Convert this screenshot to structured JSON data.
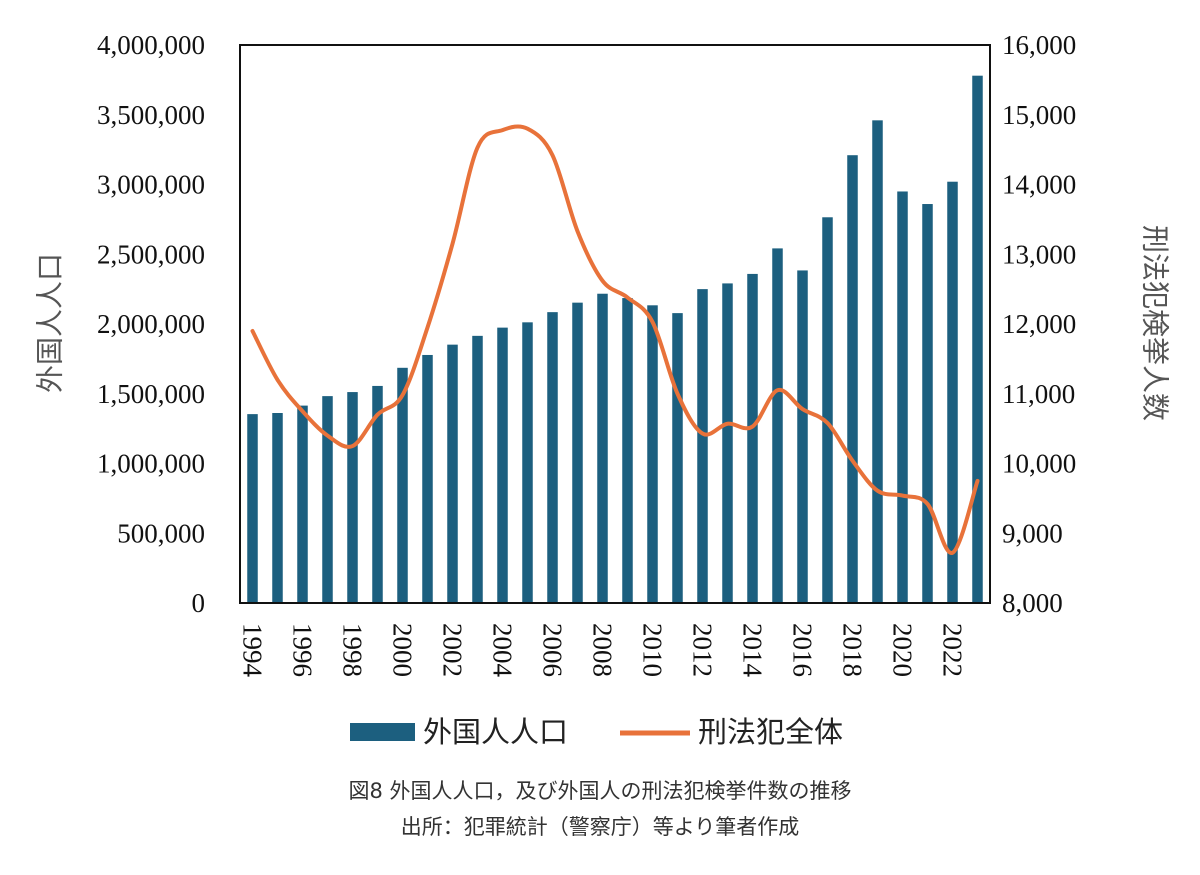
{
  "chart_data": {
    "type": "bar",
    "categories": [
      1994,
      1995,
      1996,
      1997,
      1998,
      1999,
      2000,
      2001,
      2002,
      2003,
      2004,
      2005,
      2006,
      2007,
      2008,
      2009,
      2010,
      2011,
      2012,
      2013,
      2014,
      2015,
      2016,
      2017,
      2018,
      2019,
      2020,
      2021,
      2022,
      2023
    ],
    "x_tick_labels": [
      "1994",
      "1996",
      "1998",
      "2000",
      "2002",
      "2004",
      "2006",
      "2008",
      "2010",
      "2012",
      "2014",
      "2016",
      "2018",
      "2020",
      "2022"
    ],
    "series": [
      {
        "name": "外国人人口",
        "type": "bar",
        "axis": "left",
        "color": "#1c5f7f",
        "values": [
          1354000,
          1362000,
          1415000,
          1483000,
          1512000,
          1556000,
          1686000,
          1778000,
          1852000,
          1915000,
          1974000,
          2012000,
          2085000,
          2153000,
          2217000,
          2186000,
          2134000,
          2078000,
          2250000,
          2291000,
          2359000,
          2542000,
          2384000,
          2765000,
          3210000,
          3460000,
          2950000,
          2860000,
          3020000,
          3780000
        ]
      },
      {
        "name": "刑法犯全体",
        "type": "line",
        "axis": "right",
        "color": "#e8723a",
        "values": [
          11900,
          11200,
          10750,
          10400,
          10250,
          10700,
          10980,
          11950,
          13150,
          14530,
          14780,
          14800,
          14420,
          13330,
          12620,
          12380,
          12030,
          11000,
          10430,
          10570,
          10530,
          11050,
          10780,
          10580,
          10040,
          9610,
          9540,
          9420,
          8720,
          9750
        ]
      }
    ],
    "y_left": {
      "label": "外国人人口",
      "range": [
        0,
        4000000
      ],
      "ticks": [
        "0",
        "500,000",
        "1,000,000",
        "1,500,000",
        "2,000,000",
        "2,500,000",
        "3,000,000",
        "3,500,000",
        "4,000,000"
      ]
    },
    "y_right": {
      "label": "刑法犯検挙人数",
      "range": [
        8000,
        16000
      ],
      "ticks": [
        "8,000",
        "9,000",
        "10,000",
        "11,000",
        "12,000",
        "13,000",
        "14,000",
        "15,000",
        "16,000"
      ]
    },
    "legend": [
      "外国人人口",
      "刑法犯全体"
    ],
    "caption_line1": "図8 外国人人口，及び外国人の刑法犯検挙件数の推移",
    "caption_line2": "出所：犯罪統計（警察庁）等より筆者作成"
  }
}
